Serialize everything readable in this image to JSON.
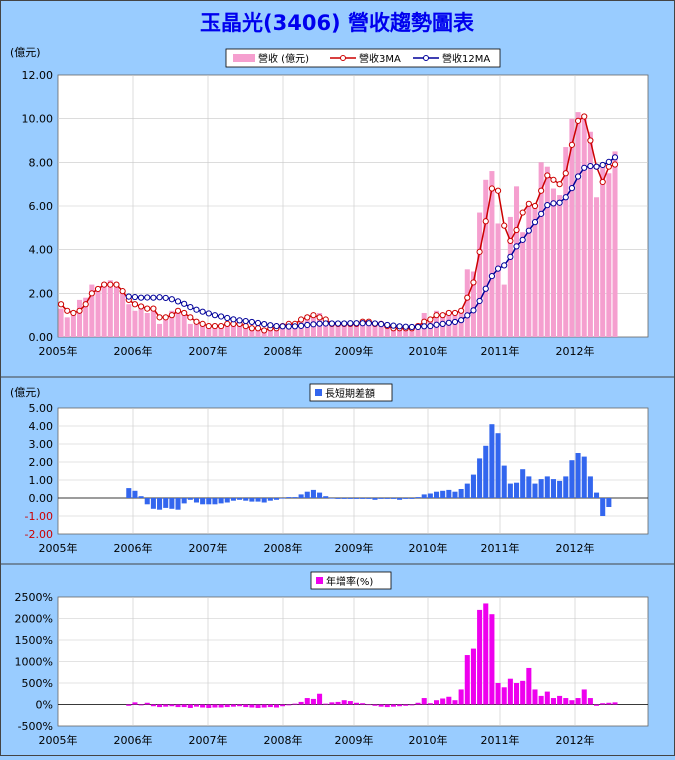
{
  "title": "玉晶光(3406) 營收趨勢圖表",
  "colors": {
    "background": "#99ccff",
    "revenue_bar": "#f59fcf",
    "ma3": "#cc0000",
    "ma12": "#000099",
    "diff_bar": "#3366ee",
    "yoy_bar": "#ee00ee",
    "title": "#0000ee",
    "negative_tick": "#cc0000"
  },
  "chart_data": [
    {
      "type": "bar+line",
      "id": "revenue",
      "ylabel": "(億元)",
      "ylim": [
        0,
        12
      ],
      "yticks": [
        "0.00",
        "2.00",
        "4.00",
        "6.00",
        "8.00",
        "10.00",
        "12.00"
      ],
      "xticks": [
        "2005年",
        "2006年",
        "2007年",
        "2008年",
        "2009年",
        "2010年",
        "2011年",
        "2012年"
      ],
      "grid": true,
      "legend_position": "top",
      "series": [
        {
          "name": "營收 (億元)",
          "type": "bar",
          "values": [
            1.3,
            0.9,
            1.0,
            1.7,
            1.8,
            2.4,
            2.3,
            2.4,
            2.6,
            2.5,
            2.0,
            1.5,
            1.2,
            1.5,
            1.1,
            1.3,
            0.6,
            0.9,
            1.2,
            1.3,
            1.1,
            0.6,
            0.7,
            0.5,
            0.4,
            0.5,
            0.5,
            0.6,
            0.7,
            0.7,
            0.5,
            0.4,
            0.3,
            0.3,
            0.4,
            0.4,
            0.5,
            0.5,
            0.6,
            0.7,
            1.0,
            0.9,
            1.1,
            0.6,
            0.6,
            0.6,
            0.6,
            0.6,
            0.7,
            0.7,
            0.7,
            0.6,
            0.5,
            0.4,
            0.4,
            0.3,
            0.4,
            0.5,
            0.6,
            1.1,
            0.7,
            1.2,
            1.1,
            1.2,
            1.0,
            1.3,
            3.1,
            3.0,
            5.7,
            7.2,
            7.6,
            5.2,
            2.4,
            5.5,
            6.9,
            4.8,
            6.1,
            5.9,
            8.0,
            7.8,
            6.8,
            6.5,
            8.7,
            10.0,
            10.3,
            10.0,
            9.4,
            6.4,
            7.8,
            7.5,
            8.5
          ]
        },
        {
          "name": "營收3MA",
          "type": "line",
          "values": [
            1.5,
            1.2,
            1.1,
            1.2,
            1.5,
            2.0,
            2.2,
            2.4,
            2.4,
            2.4,
            2.1,
            1.7,
            1.5,
            1.4,
            1.3,
            1.3,
            0.9,
            0.9,
            1.0,
            1.2,
            1.1,
            0.9,
            0.7,
            0.6,
            0.5,
            0.5,
            0.5,
            0.6,
            0.6,
            0.6,
            0.5,
            0.4,
            0.4,
            0.3,
            0.4,
            0.4,
            0.5,
            0.6,
            0.6,
            0.8,
            0.9,
            1.0,
            0.9,
            0.8,
            0.6,
            0.6,
            0.6,
            0.6,
            0.6,
            0.7,
            0.7,
            0.6,
            0.6,
            0.5,
            0.4,
            0.4,
            0.4,
            0.4,
            0.5,
            0.7,
            0.8,
            1.0,
            1.0,
            1.1,
            1.1,
            1.2,
            1.8,
            2.5,
            3.9,
            5.3,
            6.8,
            6.7,
            5.1,
            4.4,
            4.9,
            5.7,
            6.1,
            6.0,
            6.7,
            7.4,
            7.2,
            7.0,
            7.5,
            8.8,
            9.9,
            10.1,
            9.0,
            7.8,
            7.1,
            7.8,
            7.9
          ]
        },
        {
          "name": "營收12MA",
          "type": "line",
          "values": [
            null,
            null,
            null,
            null,
            null,
            null,
            null,
            null,
            null,
            null,
            null,
            1.85,
            1.83,
            1.8,
            1.81,
            1.8,
            1.82,
            1.79,
            1.73,
            1.63,
            1.52,
            1.37,
            1.25,
            1.16,
            1.08,
            1.0,
            0.94,
            0.87,
            0.81,
            0.76,
            0.73,
            0.69,
            0.64,
            0.59,
            0.54,
            0.5,
            0.49,
            0.48,
            0.49,
            0.51,
            0.55,
            0.58,
            0.61,
            0.62,
            0.62,
            0.62,
            0.62,
            0.63,
            0.63,
            0.63,
            0.63,
            0.62,
            0.59,
            0.55,
            0.52,
            0.49,
            0.47,
            0.46,
            0.46,
            0.49,
            0.5,
            0.56,
            0.6,
            0.65,
            0.69,
            0.77,
            0.99,
            1.22,
            1.65,
            2.21,
            2.79,
            3.13,
            3.28,
            3.67,
            4.15,
            4.45,
            4.87,
            5.26,
            5.64,
            6.04,
            6.12,
            6.15,
            6.4,
            6.82,
            7.35,
            7.75,
            7.83,
            7.8,
            7.88,
            8.02,
            8.23
          ]
        }
      ]
    },
    {
      "type": "bar",
      "id": "diff",
      "ylabel": "(億元)",
      "ylim": [
        -2,
        5
      ],
      "yticks": [
        "-2.00",
        "-1.00",
        "0.00",
        "1.00",
        "2.00",
        "3.00",
        "4.00",
        "5.00"
      ],
      "xticks": [
        "2005年",
        "2006年",
        "2007年",
        "2008年",
        "2009年",
        "2010年",
        "2011年",
        "2012年"
      ],
      "grid": true,
      "legend_position": "top",
      "series": [
        {
          "name": "長短期差額",
          "type": "bar",
          "values": [
            null,
            null,
            null,
            null,
            null,
            null,
            null,
            null,
            null,
            null,
            null,
            0.55,
            0.4,
            0.1,
            -0.35,
            -0.6,
            -0.65,
            -0.55,
            -0.6,
            -0.65,
            -0.3,
            -0.1,
            -0.25,
            -0.35,
            -0.35,
            -0.35,
            -0.3,
            -0.25,
            -0.15,
            -0.1,
            -0.15,
            -0.2,
            -0.2,
            -0.25,
            -0.15,
            -0.1,
            0.0,
            0.05,
            0.05,
            0.2,
            0.35,
            0.45,
            0.3,
            0.1,
            0.0,
            -0.05,
            -0.05,
            -0.05,
            -0.05,
            -0.05,
            -0.05,
            -0.1,
            -0.05,
            -0.05,
            -0.05,
            -0.1,
            -0.05,
            -0.05,
            0.05,
            0.2,
            0.25,
            0.35,
            0.4,
            0.45,
            0.35,
            0.5,
            0.8,
            1.3,
            2.2,
            2.9,
            4.1,
            3.6,
            1.8,
            0.8,
            0.85,
            1.6,
            1.2,
            0.8,
            1.05,
            1.2,
            1.05,
            0.95,
            1.2,
            2.1,
            2.5,
            2.3,
            1.2,
            0.3,
            -1.0,
            -0.5,
            null
          ]
        }
      ]
    },
    {
      "type": "bar",
      "id": "yoy",
      "ylim": [
        -500,
        2500
      ],
      "yticks": [
        "-500%",
        "0%",
        "500%",
        "1000%",
        "1500%",
        "2000%",
        "2500%"
      ],
      "xticks": [
        "2005年",
        "2006年",
        "2007年",
        "2008年",
        "2009年",
        "2010年",
        "2011年",
        "2012年"
      ],
      "grid": true,
      "legend_position": "top",
      "series": [
        {
          "name": "年增率(%)",
          "type": "bar",
          "values": [
            null,
            null,
            null,
            null,
            null,
            null,
            null,
            null,
            null,
            null,
            null,
            -30,
            50,
            -20,
            40,
            -40,
            -60,
            -50,
            -40,
            -60,
            -60,
            -80,
            -50,
            -70,
            -80,
            -70,
            -70,
            -60,
            -50,
            -40,
            -60,
            -70,
            -80,
            -70,
            -60,
            -70,
            -40,
            -20,
            20,
            60,
            150,
            130,
            250,
            20,
            50,
            60,
            100,
            80,
            40,
            30,
            -10,
            -30,
            -50,
            -60,
            -50,
            -40,
            -30,
            -20,
            40,
            150,
            30,
            100,
            140,
            180,
            100,
            350,
            1150,
            1300,
            2200,
            2350,
            2100,
            500,
            400,
            600,
            500,
            550,
            850,
            350,
            200,
            300,
            150,
            200,
            150,
            100,
            150,
            350,
            150,
            -30,
            30,
            40,
            50
          ]
        }
      ]
    }
  ]
}
